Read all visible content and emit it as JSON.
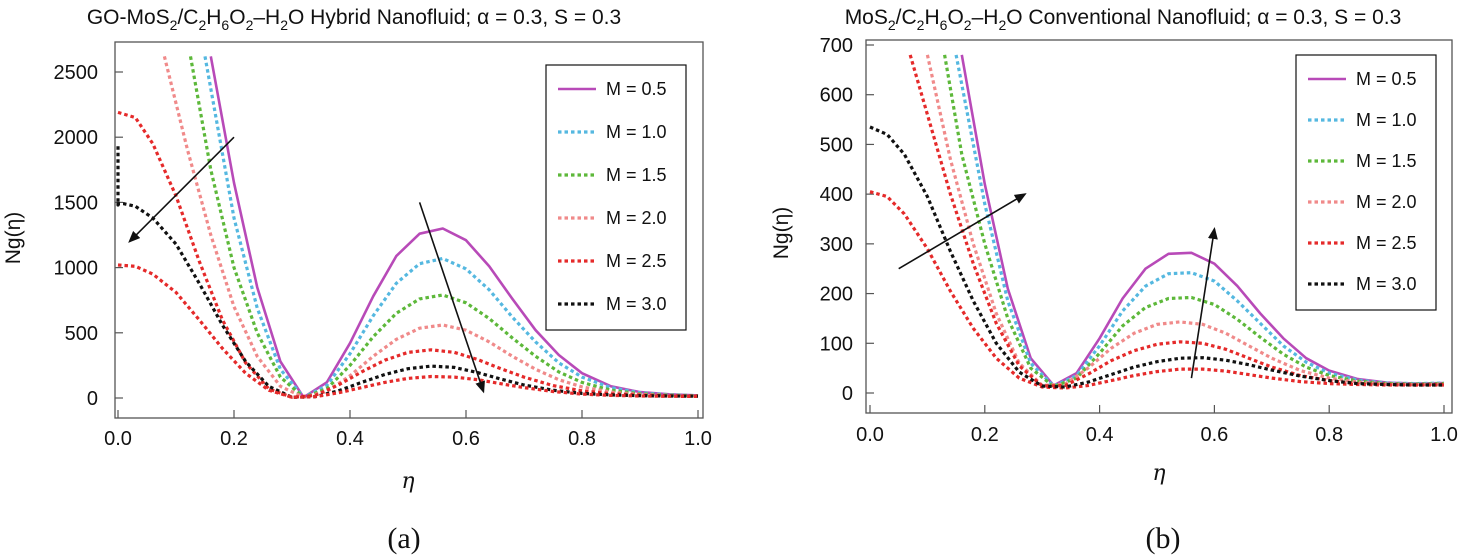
{
  "figure_captions": [
    "(a)",
    "(b)"
  ],
  "chart_data": [
    {
      "type": "line",
      "title_parts": {
        "prefix": "GO-MoS",
        "s1": "2",
        "c1": "/C",
        "s2": "2",
        "c2": "H",
        "s3": "6",
        "c3": "O",
        "s4": "2",
        "c4": "–H",
        "s5": "2",
        "c5": "O Hybrid Nanofluid; α = 0.3, S = 0.3"
      },
      "xlabel": "η",
      "ylabel": "Ng(η)",
      "xlim": [
        0,
        1
      ],
      "ylim": [
        -80,
        2600
      ],
      "xticks": [
        "0.0",
        "0.2",
        "0.4",
        "0.6",
        "0.8",
        "1.0"
      ],
      "yticks": [
        "0",
        "500",
        "1000",
        "1500",
        "2000",
        "2500"
      ],
      "legend": [
        "M = 0.5",
        "M = 1.0",
        "M = 1.5",
        "M = 2.0",
        "M = 2.5",
        "M = 3.0"
      ],
      "legend_position": "top-right",
      "series": [
        {
          "name": "M = 0.5",
          "color": "#b84ab8",
          "dashed": false,
          "x": [
            0.16,
            0.2,
            0.24,
            0.28,
            0.32,
            0.36,
            0.4,
            0.44,
            0.48,
            0.52,
            0.56,
            0.6,
            0.64,
            0.68,
            0.72,
            0.76,
            0.8,
            0.85,
            0.9,
            0.95,
            1.0
          ],
          "y": [
            2620,
            1650,
            850,
            280,
            5,
            120,
            420,
            780,
            1090,
            1260,
            1300,
            1210,
            1010,
            760,
            520,
            330,
            190,
            90,
            45,
            28,
            20
          ]
        },
        {
          "name": "M = 1.0",
          "color": "#55b8e0",
          "dashed": true,
          "x": [
            0.15,
            0.2,
            0.24,
            0.28,
            0.32,
            0.36,
            0.4,
            0.44,
            0.48,
            0.52,
            0.56,
            0.6,
            0.64,
            0.68,
            0.72,
            0.76,
            0.8,
            0.85,
            0.9,
            0.95,
            1.0
          ],
          "y": [
            2620,
            1380,
            690,
            220,
            5,
            95,
            340,
            630,
            880,
            1030,
            1070,
            990,
            830,
            620,
            430,
            270,
            160,
            80,
            40,
            25,
            18
          ]
        },
        {
          "name": "M = 1.5",
          "color": "#5db83a",
          "dashed": true,
          "x": [
            0.125,
            0.16,
            0.2,
            0.24,
            0.28,
            0.32,
            0.36,
            0.4,
            0.44,
            0.48,
            0.52,
            0.56,
            0.6,
            0.64,
            0.68,
            0.72,
            0.76,
            0.8,
            0.85,
            0.9,
            0.95,
            1.0
          ],
          "y": [
            2620,
            1750,
            1000,
            500,
            160,
            5,
            70,
            250,
            470,
            650,
            760,
            790,
            730,
            610,
            460,
            320,
            200,
            120,
            60,
            32,
            22,
            17
          ]
        },
        {
          "name": "M = 2.0",
          "color": "#f08a8a",
          "dashed": true,
          "x": [
            0.08,
            0.12,
            0.16,
            0.2,
            0.24,
            0.28,
            0.32,
            0.36,
            0.4,
            0.44,
            0.48,
            0.52,
            0.56,
            0.6,
            0.64,
            0.68,
            0.72,
            0.76,
            0.8,
            0.85,
            0.9,
            0.95,
            1.0
          ],
          "y": [
            2620,
            1900,
            1250,
            700,
            320,
            90,
            5,
            50,
            170,
            320,
            450,
            535,
            560,
            520,
            430,
            320,
            220,
            140,
            85,
            45,
            27,
            20,
            16
          ]
        },
        {
          "name": "M = 2.5",
          "color": "#e52a2a",
          "dashed": true,
          "x": [
            0.0,
            0.03,
            0.06,
            0.1,
            0.14,
            0.18,
            0.22,
            0.26,
            0.3,
            0.34,
            0.38,
            0.42,
            0.46,
            0.5,
            0.54,
            0.58,
            0.62,
            0.66,
            0.7,
            0.75,
            0.8,
            0.85,
            0.9,
            0.95,
            1.0
          ],
          "y": [
            2190,
            2150,
            1950,
            1550,
            1050,
            600,
            270,
            70,
            5,
            20,
            100,
            200,
            290,
            350,
            370,
            350,
            295,
            225,
            160,
            95,
            55,
            32,
            22,
            17,
            15
          ]
        },
        {
          "name": "M = 3.0",
          "color": "#111111",
          "dashed": true,
          "x": [
            0.0,
            0.0,
            0.0,
            0.01,
            0.03,
            0.06,
            0.1,
            0.14,
            0.18,
            0.22,
            0.26,
            0.3,
            0.34,
            0.38,
            0.42,
            0.46,
            0.5,
            0.54,
            0.58,
            0.62,
            0.66,
            0.7,
            0.75,
            0.8,
            0.85,
            0.9,
            0.95,
            1.0
          ],
          "y": [
            1930,
            1480,
            1490,
            1490,
            1470,
            1380,
            1180,
            880,
            560,
            280,
            90,
            5,
            10,
            55,
            120,
            180,
            225,
            245,
            235,
            195,
            145,
            100,
            60,
            35,
            24,
            18,
            15,
            14
          ]
        },
        {
          "name": "M = 2.5 (lower)",
          "color": "#e52a2a",
          "dashed": true,
          "legend": false,
          "x": [
            0.0,
            0.03,
            0.06,
            0.1,
            0.14,
            0.18,
            0.22,
            0.26,
            0.3,
            0.34,
            0.38,
            0.42,
            0.46,
            0.5,
            0.54,
            0.58,
            0.62,
            0.66,
            0.7,
            0.75,
            0.8,
            0.85,
            0.9,
            0.95,
            1.0
          ],
          "y": [
            1020,
            1010,
            950,
            810,
            600,
            380,
            190,
            60,
            5,
            10,
            40,
            80,
            120,
            150,
            165,
            160,
            140,
            110,
            80,
            50,
            30,
            20,
            15,
            13,
            12
          ]
        }
      ],
      "arrows": [
        {
          "from": [
            0.2,
            2000
          ],
          "to": [
            0.02,
            1200
          ]
        },
        {
          "from": [
            0.52,
            1500
          ],
          "to": [
            0.63,
            50
          ]
        }
      ]
    },
    {
      "type": "line",
      "title_parts": {
        "prefix": "MoS",
        "s1": "2",
        "c1": "/C",
        "s2": "2",
        "c2": "H",
        "s3": "6",
        "c3": "O",
        "s4": "2",
        "c4": "–H",
        "s5": "2",
        "c5": "O Conventional Nanofluid; α = 0.3, S = 0.3"
      },
      "xlabel": "η",
      "ylabel": "Ng(η)",
      "xlim": [
        0,
        1
      ],
      "ylim": [
        -20,
        710
      ],
      "xticks": [
        "0.0",
        "0.2",
        "0.4",
        "0.6",
        "0.8",
        "1.0"
      ],
      "yticks": [
        "0",
        "100",
        "200",
        "300",
        "400",
        "500",
        "600",
        "700"
      ],
      "legend": [
        "M = 0.5",
        "M = 1.0",
        "M = 1.5",
        "M = 2.0",
        "M = 2.5",
        "M = 3.0"
      ],
      "legend_position": "top-right",
      "series": [
        {
          "name": "M = 0.5",
          "color": "#b84ab8",
          "dashed": false,
          "x": [
            0.16,
            0.2,
            0.24,
            0.28,
            0.32,
            0.36,
            0.4,
            0.44,
            0.48,
            0.52,
            0.56,
            0.6,
            0.64,
            0.68,
            0.72,
            0.76,
            0.8,
            0.85,
            0.9,
            0.95,
            1.0
          ],
          "y": [
            680,
            420,
            210,
            70,
            15,
            40,
            110,
            190,
            250,
            280,
            282,
            260,
            215,
            160,
            110,
            70,
            45,
            28,
            21,
            19,
            20
          ]
        },
        {
          "name": "M = 1.0",
          "color": "#55b8e0",
          "dashed": true,
          "x": [
            0.15,
            0.2,
            0.24,
            0.28,
            0.32,
            0.36,
            0.4,
            0.44,
            0.48,
            0.52,
            0.56,
            0.6,
            0.64,
            0.68,
            0.72,
            0.76,
            0.8,
            0.85,
            0.9,
            0.95,
            1.0
          ],
          "y": [
            680,
            380,
            185,
            60,
            14,
            35,
            95,
            165,
            215,
            240,
            242,
            225,
            185,
            140,
            95,
            62,
            40,
            26,
            20,
            19,
            20
          ]
        },
        {
          "name": "M = 1.5",
          "color": "#5db83a",
          "dashed": true,
          "x": [
            0.13,
            0.16,
            0.2,
            0.24,
            0.28,
            0.32,
            0.36,
            0.4,
            0.44,
            0.48,
            0.52,
            0.56,
            0.6,
            0.64,
            0.68,
            0.72,
            0.76,
            0.8,
            0.85,
            0.9,
            0.95,
            1.0
          ],
          "y": [
            680,
            480,
            300,
            150,
            50,
            13,
            30,
            80,
            135,
            172,
            190,
            192,
            178,
            148,
            112,
            78,
            52,
            35,
            24,
            19,
            18,
            19
          ]
        },
        {
          "name": "M = 2.0",
          "color": "#f08a8a",
          "dashed": true,
          "x": [
            0.1,
            0.14,
            0.18,
            0.22,
            0.26,
            0.3,
            0.34,
            0.38,
            0.42,
            0.46,
            0.5,
            0.54,
            0.58,
            0.62,
            0.66,
            0.7,
            0.75,
            0.8,
            0.85,
            0.9,
            0.95,
            1.0
          ],
          "y": [
            680,
            470,
            300,
            160,
            60,
            15,
            18,
            50,
            90,
            120,
            138,
            143,
            138,
            120,
            95,
            70,
            45,
            30,
            22,
            18,
            17,
            18
          ]
        },
        {
          "name": "M = 2.5",
          "color": "#e52a2a",
          "dashed": true,
          "x": [
            0.07,
            0.1,
            0.14,
            0.18,
            0.22,
            0.26,
            0.3,
            0.34,
            0.38,
            0.42,
            0.46,
            0.5,
            0.54,
            0.58,
            0.62,
            0.66,
            0.7,
            0.75,
            0.8,
            0.85,
            0.9,
            0.95,
            1.0
          ],
          "y": [
            680,
            560,
            400,
            260,
            140,
            55,
            14,
            15,
            38,
            65,
            85,
            98,
            103,
            100,
            88,
            70,
            52,
            35,
            25,
            19,
            17,
            16,
            17
          ]
        },
        {
          "name": "M = 2.5 (lower)",
          "color": "#e52a2a",
          "dashed": true,
          "legend": false,
          "x": [
            0.0,
            0.03,
            0.06,
            0.1,
            0.14,
            0.18,
            0.22,
            0.26,
            0.3,
            0.34,
            0.38,
            0.42,
            0.46,
            0.5,
            0.54,
            0.58,
            0.62,
            0.66,
            0.7,
            0.75,
            0.8,
            0.85,
            0.9,
            0.95,
            1.0
          ],
          "y": [
            405,
            395,
            360,
            290,
            205,
            130,
            70,
            30,
            12,
            10,
            15,
            25,
            35,
            43,
            48,
            48,
            44,
            37,
            30,
            23,
            19,
            17,
            16,
            16,
            16
          ]
        },
        {
          "name": "M = 3.0",
          "color": "#111111",
          "dashed": true,
          "x": [
            0.0,
            0.03,
            0.06,
            0.1,
            0.14,
            0.18,
            0.22,
            0.26,
            0.3,
            0.34,
            0.38,
            0.42,
            0.46,
            0.5,
            0.54,
            0.58,
            0.62,
            0.66,
            0.7,
            0.75,
            0.8,
            0.85,
            0.9,
            0.95,
            1.0
          ],
          "y": [
            535,
            520,
            480,
            395,
            285,
            185,
            100,
            42,
            14,
            12,
            22,
            37,
            52,
            63,
            70,
            71,
            66,
            57,
            46,
            34,
            25,
            19,
            17,
            16,
            16
          ]
        }
      ],
      "arrows": [
        {
          "from": [
            0.05,
            250
          ],
          "to": [
            0.27,
            400
          ]
        },
        {
          "from": [
            0.56,
            30
          ],
          "to": [
            0.6,
            330
          ]
        }
      ]
    }
  ]
}
